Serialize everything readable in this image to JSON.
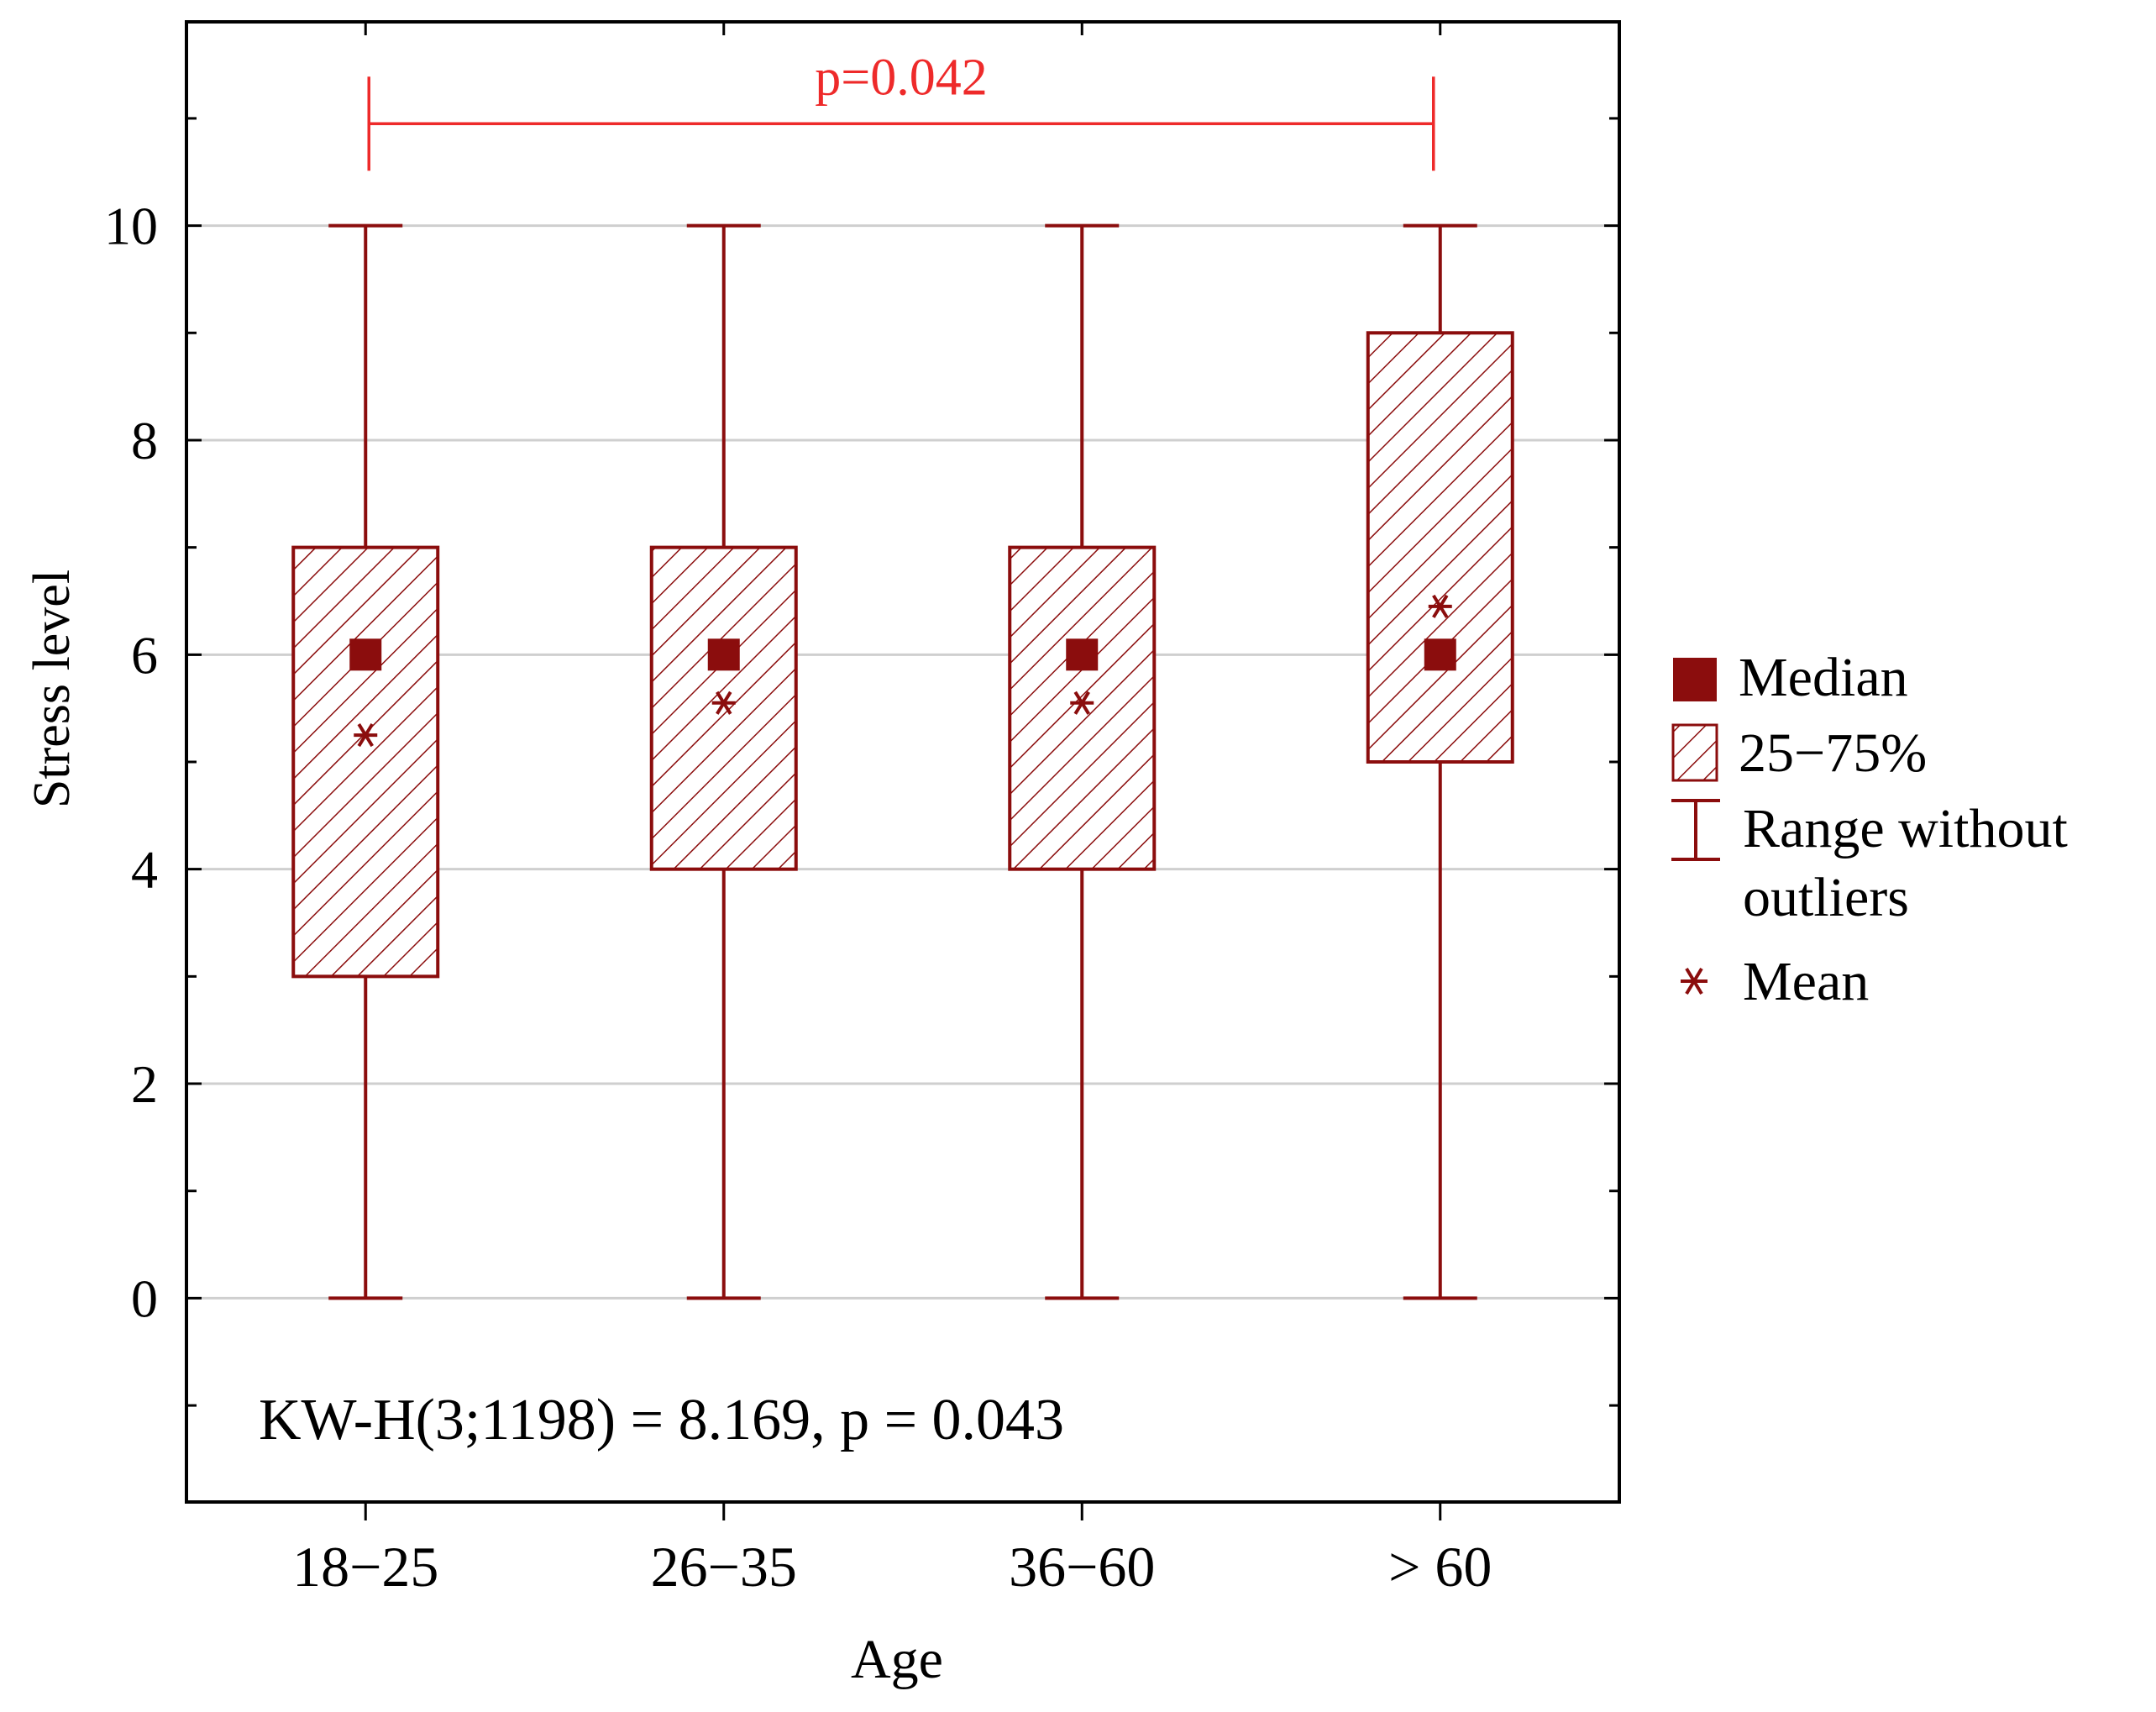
{
  "chart_data": {
    "type": "boxplot",
    "title": "",
    "xlabel": "Age",
    "ylabel": "Stress level",
    "ylim": [
      -1.9,
      11.9
    ],
    "yticks": [
      0,
      2,
      4,
      6,
      8,
      10
    ],
    "ytick_labels": [
      "0",
      "2",
      "4",
      "6",
      "8",
      "10"
    ],
    "grid": true,
    "categories": [
      "18−25",
      "26−35",
      "36−60",
      "> 60"
    ],
    "boxes": [
      {
        "category": "18−25",
        "min": 0,
        "q1": 3,
        "median": 6,
        "q3": 7,
        "max": 10,
        "mean": 5.25
      },
      {
        "category": "26−35",
        "min": 0,
        "q1": 4,
        "median": 6,
        "q3": 7,
        "max": 10,
        "mean": 5.55
      },
      {
        "category": "36−60",
        "min": 0,
        "q1": 4,
        "median": 6,
        "q3": 7,
        "max": 10,
        "mean": 5.55
      },
      {
        "category": "> 60",
        "min": 0,
        "q1": 5,
        "median": 6,
        "q3": 9,
        "max": 10,
        "mean": 6.45
      }
    ],
    "significance_bracket": {
      "from_category": 0,
      "to_category": 3,
      "y": 10.95,
      "label": "p=0.042",
      "color": "#ee2a2a"
    },
    "annotation": "KW-H(3;1198) = 8.169, p = 0.043",
    "legend": {
      "placement": "right",
      "items": [
        {
          "symbol": "median-square",
          "label": "Median"
        },
        {
          "symbol": "hatched-box",
          "label": "25−75%"
        },
        {
          "symbol": "whisker",
          "label": "Range without",
          "label_line2": "outliers"
        },
        {
          "symbol": "mean-asterisk",
          "label": "Mean"
        }
      ]
    },
    "colors": {
      "series": "#8b0d0d",
      "grid": "#cfcfcf",
      "axis": "#000000",
      "bracket": "#ee2a2a"
    }
  }
}
